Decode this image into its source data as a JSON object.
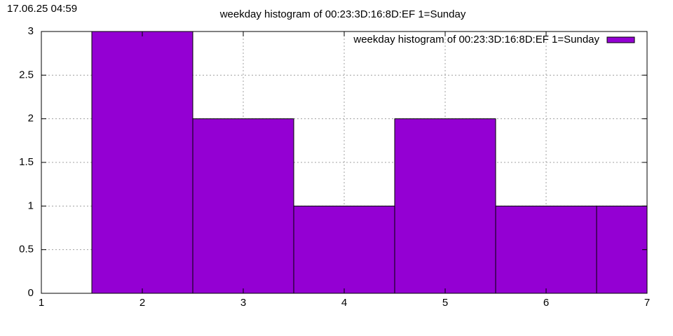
{
  "timestamp": "17.06.25 04:59",
  "chart_data": {
    "type": "bar",
    "title": "weekday histogram of 00:23:3D:16:8D:EF 1=Sunday",
    "x": [
      2,
      3,
      4,
      5,
      6,
      7
    ],
    "series": [
      {
        "name": "weekday histogram of 00:23:3D:16:8D:EF 1=Sunday",
        "color": "#9400d3",
        "values": [
          3,
          2,
          1,
          2,
          1,
          1
        ]
      }
    ],
    "xlim": [
      1,
      7
    ],
    "xticks": [
      1,
      2,
      3,
      4,
      5,
      6,
      7
    ],
    "ylim": [
      0,
      3
    ],
    "yticks": [
      0,
      0.5,
      1,
      1.5,
      2,
      2.5,
      3
    ],
    "grid": true,
    "legend": "top-right"
  }
}
